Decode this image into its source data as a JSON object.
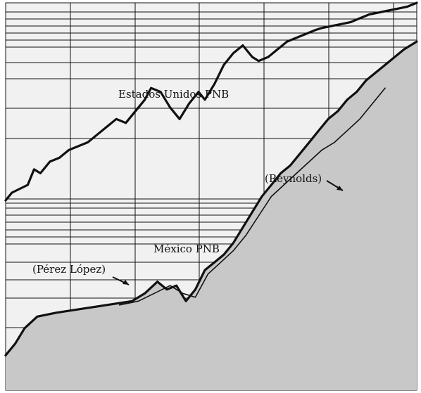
{
  "chart_data": {
    "type": "line",
    "title": "",
    "xlabel": "",
    "ylabel": "",
    "grid": true,
    "scale": "log (semi-logarithmic, two stacked panels)",
    "x_range": [
      0,
      6.5
    ],
    "x_unit": "vertical gridline intervals (no tick labels shown)",
    "y_range": [
      0,
      1
    ],
    "y_unit": "relative height (no tick labels shown)",
    "series": [
      {
        "name": "Estados Unidos PNB",
        "label": "Estados Unidos PNB",
        "x": [
          0,
          0.1,
          0.35,
          0.45,
          0.55,
          0.7,
          0.85,
          1.0,
          1.15,
          1.3,
          1.45,
          1.6,
          1.75,
          1.9,
          2.05,
          2.2,
          2.3,
          2.45,
          2.6,
          2.75,
          2.9,
          3.05,
          3.15,
          3.3,
          3.45,
          3.6,
          3.75,
          3.9,
          4.0,
          4.15,
          4.3,
          4.45,
          4.6,
          4.75,
          4.9,
          5.0,
          5.15,
          5.3,
          5.45,
          5.6,
          5.75,
          5.9,
          6.05,
          6.2,
          6.35,
          6.5
        ],
        "y": [
          0.49,
          0.51,
          0.53,
          0.57,
          0.56,
          0.59,
          0.6,
          0.62,
          0.63,
          0.64,
          0.66,
          0.68,
          0.7,
          0.69,
          0.72,
          0.75,
          0.78,
          0.77,
          0.73,
          0.7,
          0.74,
          0.77,
          0.75,
          0.79,
          0.84,
          0.87,
          0.89,
          0.86,
          0.85,
          0.86,
          0.88,
          0.9,
          0.91,
          0.92,
          0.93,
          0.935,
          0.94,
          0.945,
          0.95,
          0.96,
          0.97,
          0.975,
          0.98,
          0.985,
          0.99,
          1.0
        ],
        "color": "#111111",
        "stroke": "bold"
      },
      {
        "name": "México PNB",
        "label": "México PNB",
        "annotations": [
          "(Pérez López)",
          "(Reynolds)"
        ],
        "x": [
          0,
          0.15,
          0.3,
          0.5,
          0.8,
          1.2,
          1.6,
          2.0,
          2.2,
          2.4,
          2.55,
          2.7,
          2.85,
          3.0,
          3.15,
          3.3,
          3.45,
          3.6,
          3.75,
          3.9,
          4.05,
          4.2,
          4.35,
          4.5,
          4.65,
          4.8,
          4.95,
          5.1,
          5.25,
          5.4,
          5.55,
          5.7,
          5.85,
          6.0,
          6.15,
          6.3,
          6.5
        ],
        "y": [
          0.09,
          0.12,
          0.16,
          0.19,
          0.2,
          0.21,
          0.22,
          0.23,
          0.25,
          0.28,
          0.26,
          0.27,
          0.23,
          0.26,
          0.31,
          0.33,
          0.35,
          0.38,
          0.42,
          0.46,
          0.5,
          0.53,
          0.56,
          0.58,
          0.61,
          0.64,
          0.67,
          0.7,
          0.72,
          0.75,
          0.77,
          0.8,
          0.82,
          0.84,
          0.86,
          0.88,
          0.9
        ],
        "color": "#111111",
        "stroke": "bold"
      },
      {
        "name": "México PNB (Pérez López / Reynolds)",
        "x": [
          1.8,
          2.1,
          2.35,
          2.6,
          2.8,
          3.0,
          3.2,
          3.4,
          3.6,
          3.8,
          4.0,
          4.2,
          4.4,
          4.6,
          4.8,
          5.0,
          5.2,
          5.4,
          5.6,
          5.8,
          6.0
        ],
        "y": [
          0.22,
          0.23,
          0.25,
          0.27,
          0.25,
          0.24,
          0.3,
          0.33,
          0.36,
          0.4,
          0.45,
          0.5,
          0.53,
          0.56,
          0.59,
          0.62,
          0.64,
          0.67,
          0.7,
          0.74,
          0.78
        ],
        "color": "#111111",
        "stroke": "thin"
      }
    ]
  }
}
